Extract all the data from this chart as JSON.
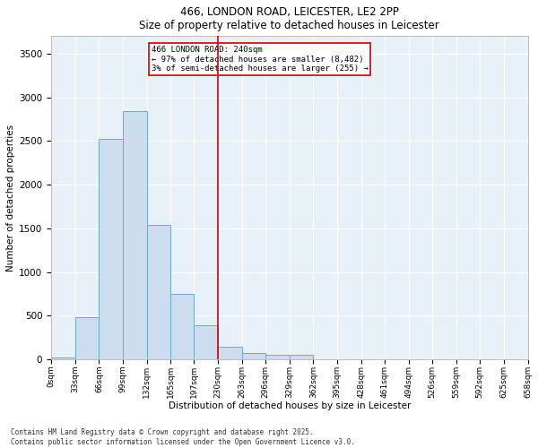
{
  "title_line1": "466, LONDON ROAD, LEICESTER, LE2 2PP",
  "title_line2": "Size of property relative to detached houses in Leicester",
  "xlabel": "Distribution of detached houses by size in Leicester",
  "ylabel": "Number of detached properties",
  "bar_color": "#cddcee",
  "bar_edgecolor": "#6aaad4",
  "background_color": "#e8f0f8",
  "grid_color": "#ffffff",
  "vline_x": 230,
  "vline_color": "#cc0000",
  "annotation_title": "466 LONDON ROAD: 240sqm",
  "annotation_line1": "← 97% of detached houses are smaller (8,482)",
  "annotation_line2": "3% of semi-detached houses are larger (255) →",
  "annotation_box_edgecolor": "#cc0000",
  "bin_edges": [
    0,
    33,
    66,
    99,
    132,
    165,
    197,
    230,
    263,
    296,
    329,
    362,
    395,
    428,
    461,
    494,
    526,
    559,
    592,
    625,
    658
  ],
  "bar_heights": [
    20,
    480,
    2520,
    2840,
    1540,
    750,
    390,
    150,
    70,
    50,
    50,
    0,
    0,
    0,
    0,
    0,
    0,
    0,
    0,
    0
  ],
  "ylim": [
    0,
    3700
  ],
  "yticks": [
    0,
    500,
    1000,
    1500,
    2000,
    2500,
    3000,
    3500
  ],
  "footnote1": "Contains HM Land Registry data © Crown copyright and database right 2025.",
  "footnote2": "Contains public sector information licensed under the Open Government Licence v3.0."
}
